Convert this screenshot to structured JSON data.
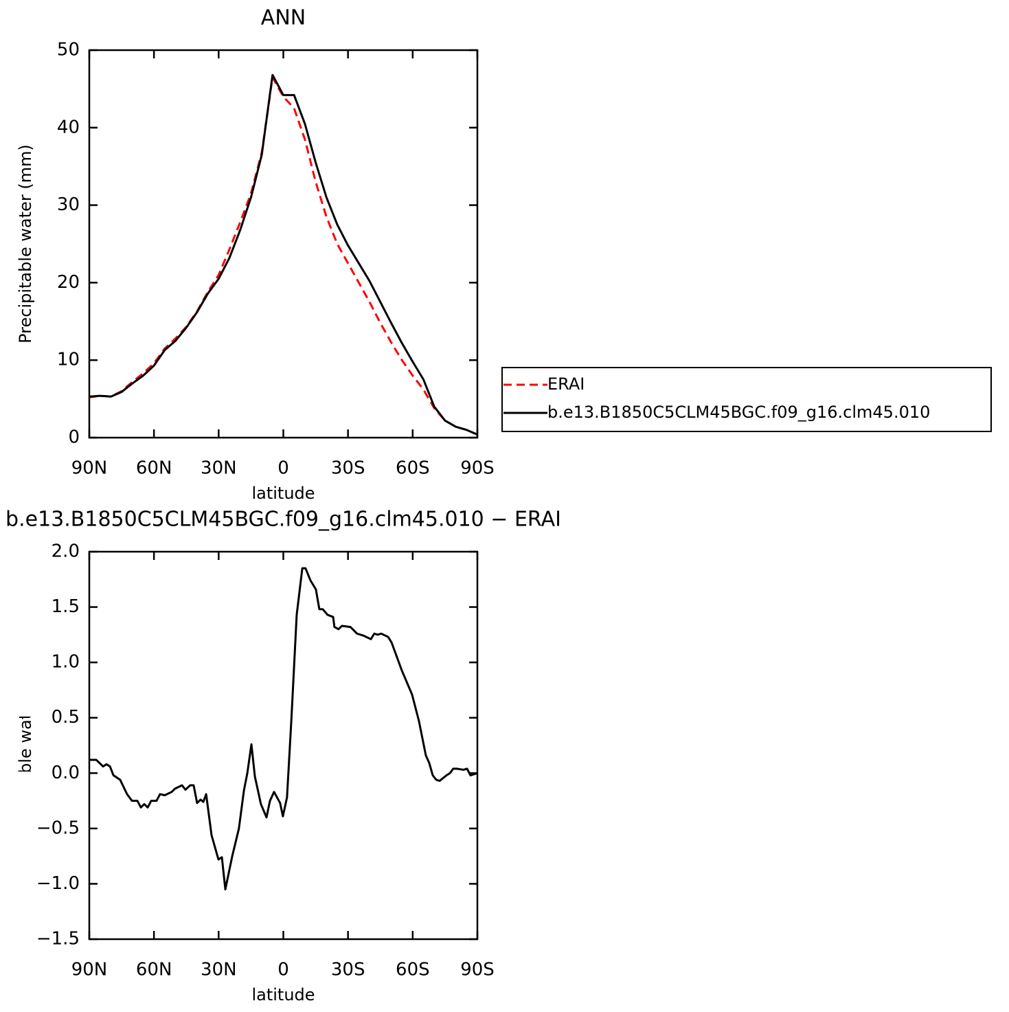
{
  "chart_data": [
    {
      "type": "line",
      "title": "ANN",
      "xlabel": "latitude",
      "ylabel": "Precipitable water (mm)",
      "x": [
        90,
        85,
        80,
        75,
        70,
        65,
        60,
        55,
        50,
        45,
        40,
        35,
        30,
        25,
        20,
        15,
        10,
        5,
        0,
        -5,
        -10,
        -15,
        -20,
        -25,
        -30,
        -35,
        -40,
        -45,
        -50,
        -55,
        -60,
        -65,
        -70,
        -75,
        -80,
        -85,
        -90
      ],
      "series": [
        {
          "name": "ERAI",
          "color": "#ff0000",
          "style": "dashed",
          "values": [
            5.2,
            5.4,
            5.3,
            6.0,
            7.2,
            8.3,
            9.6,
            11.5,
            12.8,
            14.3,
            16.3,
            18.8,
            21.0,
            24.3,
            27.8,
            31.5,
            36.8,
            46.5,
            44.0,
            42.5,
            38.5,
            33.0,
            28.5,
            25.0,
            22.5,
            20.0,
            17.5,
            14.8,
            12.3,
            10.0,
            8.0,
            6.2,
            3.8,
            2.2,
            1.4,
            1.0,
            0.4
          ]
        },
        {
          "name": "b.e13.B1850C5CLM45BGC.f09_g16.clm45.010",
          "color": "#000000",
          "style": "solid",
          "values": [
            5.3,
            5.4,
            5.3,
            5.9,
            7.0,
            8.0,
            9.3,
            11.3,
            12.5,
            14.2,
            16.2,
            18.6,
            20.5,
            23.2,
            26.8,
            31.0,
            36.5,
            46.8,
            44.2,
            44.2,
            40.5,
            35.5,
            31.0,
            27.5,
            24.8,
            22.5,
            20.2,
            17.5,
            14.8,
            12.2,
            9.8,
            7.5,
            4.0,
            2.2,
            1.4,
            1.0,
            0.4
          ]
        }
      ],
      "xlim": [
        90,
        -90
      ],
      "xticks": [
        {
          "value": 90,
          "label": "90N"
        },
        {
          "value": 60,
          "label": "60N"
        },
        {
          "value": 30,
          "label": "30N"
        },
        0,
        {
          "value": -30,
          "label": "30S"
        },
        {
          "value": -60,
          "label": "60S"
        },
        {
          "value": -90,
          "label": "90S"
        }
      ],
      "ylim": [
        0,
        50
      ],
      "yticks": [
        0,
        10,
        20,
        30,
        40,
        50
      ],
      "legend": "right"
    },
    {
      "type": "line",
      "title": "b.e13.B1850C5CLM45BGC.f09_g16.clm45.010 − ERAI",
      "xlabel": "latitude",
      "ylabel": "Precipitable water (mm)",
      "x": [
        90,
        86.8,
        83.6,
        82,
        80.4,
        78.8,
        75.7,
        72.5,
        70.2,
        67.7,
        66.1,
        64.5,
        62.9,
        61.3,
        58.8,
        57.2,
        55.0,
        51.8,
        50.2,
        47.0,
        45.4,
        43.2,
        41.6,
        40.0,
        38.4,
        37.1,
        35.8,
        33.3,
        30.1,
        28.5,
        26.9,
        23.7,
        20.6,
        18.3,
        16.7,
        14.8,
        13.2,
        10.4,
        7.8,
        6.2,
        4.3,
        1.5,
        0.2,
        -1.7,
        -3.7,
        -6.2,
        -8.8,
        -10.3,
        -12.6,
        -15.1,
        -16.7,
        -18.3,
        -20.5,
        -23.1,
        -23.7,
        -25.6,
        -27.2,
        -31.1,
        -34.2,
        -37.4,
        -40.6,
        -42.2,
        -43.8,
        -45.4,
        -48.6,
        -50.2,
        -54.9,
        -59.7,
        -62.9,
        -66.1,
        -67.7,
        -69.3,
        -70.9,
        -72.5,
        -75.7,
        -77.3,
        -78.8,
        -80.4,
        -83.6,
        -85.2,
        -86.8,
        -90
      ],
      "values": [
        0.12,
        0.12,
        0.06,
        0.08,
        0.06,
        -0.02,
        -0.06,
        -0.19,
        -0.25,
        -0.25,
        -0.31,
        -0.28,
        -0.31,
        -0.25,
        -0.25,
        -0.19,
        -0.2,
        -0.17,
        -0.14,
        -0.11,
        -0.15,
        -0.11,
        -0.11,
        -0.27,
        -0.24,
        -0.26,
        -0.19,
        -0.56,
        -0.78,
        -0.76,
        -1.05,
        -0.75,
        -0.5,
        -0.16,
        0.0,
        0.26,
        -0.03,
        -0.28,
        -0.4,
        -0.25,
        -0.17,
        -0.27,
        -0.39,
        -0.22,
        0.47,
        1.43,
        1.85,
        1.85,
        1.74,
        1.66,
        1.48,
        1.48,
        1.43,
        1.41,
        1.32,
        1.3,
        1.33,
        1.32,
        1.26,
        1.24,
        1.21,
        1.26,
        1.25,
        1.26,
        1.23,
        1.18,
        0.93,
        0.71,
        0.47,
        0.16,
        0.09,
        -0.02,
        -0.06,
        -0.07,
        -0.02,
        0.0,
        0.04,
        0.04,
        0.03,
        0.04,
        -0.02,
        0.0
      ],
      "color": "#000000",
      "style": "solid",
      "xlim": [
        90,
        -90
      ],
      "xticks": [
        {
          "value": 90,
          "label": "90N"
        },
        {
          "value": 60,
          "label": "60N"
        },
        {
          "value": 30,
          "label": "30N"
        },
        0,
        {
          "value": -30,
          "label": "30S"
        },
        {
          "value": -60,
          "label": "60S"
        },
        {
          "value": -90,
          "label": "90S"
        }
      ],
      "ylim": [
        -1.5,
        2
      ],
      "yticks": [
        {
          "value": -1.5,
          "label": "−1.5"
        },
        {
          "value": -1,
          "label": "−1.0"
        },
        {
          "value": -0.5,
          "label": "−0.5"
        },
        {
          "value": 0,
          "label": "0.0"
        },
        {
          "value": 0.5,
          "label": "0.5"
        },
        {
          "value": 1,
          "label": "1.0"
        },
        {
          "value": 1.5,
          "label": "1.5"
        },
        {
          "value": 2,
          "label": "2.0"
        }
      ]
    }
  ]
}
